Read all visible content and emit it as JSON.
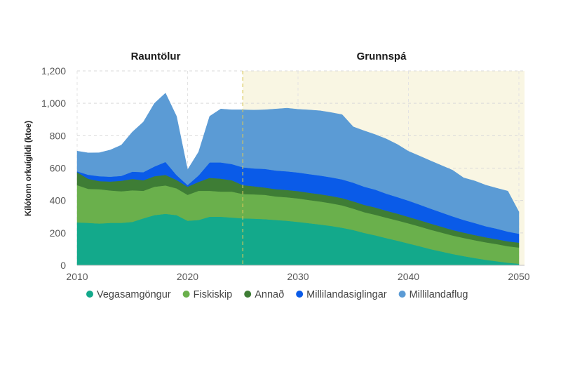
{
  "chart_data": {
    "type": "area",
    "stacked": true,
    "ylabel": "Kílótonn orkuígildi (ktoe)",
    "ylim": [
      0,
      1200
    ],
    "xlim": [
      2010,
      2050
    ],
    "yticks": [
      {
        "value": 0,
        "label": "0"
      },
      {
        "value": 200,
        "label": "200"
      },
      {
        "value": 400,
        "label": "400"
      },
      {
        "value": 600,
        "label": "600"
      },
      {
        "value": 800,
        "label": "800"
      },
      {
        "value": 1000,
        "label": "1,000"
      },
      {
        "value": 1200,
        "label": "1,200"
      }
    ],
    "xticks": [
      {
        "value": 2010,
        "label": "2010"
      },
      {
        "value": 2020,
        "label": "2020"
      },
      {
        "value": 2030,
        "label": "2030"
      },
      {
        "value": 2040,
        "label": "2040"
      },
      {
        "value": 2050,
        "label": "2050"
      }
    ],
    "periods": [
      {
        "label": "Rauntölur",
        "from": 2010,
        "to": 2025
      },
      {
        "label": "Grunnspá",
        "from": 2025,
        "to": 2050
      }
    ],
    "forecast_start": 2025,
    "forecast_color": "#f9f6e3",
    "divider_color": "#d9c85a",
    "x": [
      2010,
      2011,
      2012,
      2013,
      2014,
      2015,
      2016,
      2017,
      2018,
      2019,
      2020,
      2021,
      2022,
      2023,
      2024,
      2025,
      2026,
      2027,
      2028,
      2029,
      2030,
      2031,
      2032,
      2033,
      2034,
      2035,
      2036,
      2037,
      2038,
      2039,
      2040,
      2041,
      2042,
      2043,
      2044,
      2045,
      2046,
      2047,
      2048,
      2049,
      2050
    ],
    "series": [
      {
        "name": "Vegasamgöngur",
        "color": "#13a98b",
        "values": [
          265,
          262,
          258,
          262,
          262,
          268,
          290,
          310,
          318,
          310,
          275,
          280,
          300,
          300,
          295,
          290,
          288,
          285,
          280,
          275,
          268,
          260,
          252,
          243,
          232,
          218,
          200,
          185,
          168,
          152,
          135,
          118,
          100,
          85,
          70,
          57,
          45,
          34,
          25,
          16,
          10
        ]
      },
      {
        "name": "Fiskiskip",
        "color": "#6ab04c",
        "values": [
          230,
          210,
          212,
          200,
          195,
          195,
          170,
          175,
          175,
          165,
          160,
          180,
          160,
          155,
          160,
          150,
          150,
          150,
          145,
          145,
          145,
          143,
          142,
          140,
          138,
          132,
          128,
          127,
          126,
          125,
          124,
          122,
          120,
          117,
          114,
          112,
          110,
          108,
          106,
          102,
          100
        ]
      },
      {
        "name": "Annað",
        "color": "#3e7d35",
        "values": [
          80,
          62,
          50,
          55,
          65,
          70,
          65,
          65,
          65,
          52,
          50,
          55,
          80,
          80,
          70,
          55,
          50,
          45,
          45,
          45,
          45,
          45,
          45,
          45,
          45,
          45,
          45,
          45,
          43,
          42,
          40,
          39,
          38,
          36,
          34,
          33,
          32,
          31,
          30,
          30,
          30
        ]
      },
      {
        "name": "Millilandasiglingar",
        "color": "#0a5be8",
        "values": [
          5,
          25,
          30,
          30,
          30,
          45,
          50,
          60,
          80,
          30,
          10,
          40,
          95,
          100,
          100,
          110,
          110,
          115,
          115,
          115,
          115,
          115,
          115,
          115,
          115,
          115,
          112,
          110,
          105,
          102,
          100,
          96,
          92,
          88,
          84,
          78,
          74,
          68,
          65,
          60,
          55
        ]
      },
      {
        "name": "Millilandaflug",
        "color": "#5b9bd5",
        "values": [
          125,
          135,
          145,
          165,
          190,
          245,
          310,
          390,
          425,
          363,
          95,
          145,
          285,
          330,
          335,
          355,
          360,
          365,
          380,
          390,
          390,
          396,
          400,
          400,
          400,
          345,
          345,
          340,
          338,
          325,
          305,
          300,
          295,
          290,
          285,
          260,
          260,
          254,
          250,
          250,
          135
        ]
      }
    ]
  }
}
